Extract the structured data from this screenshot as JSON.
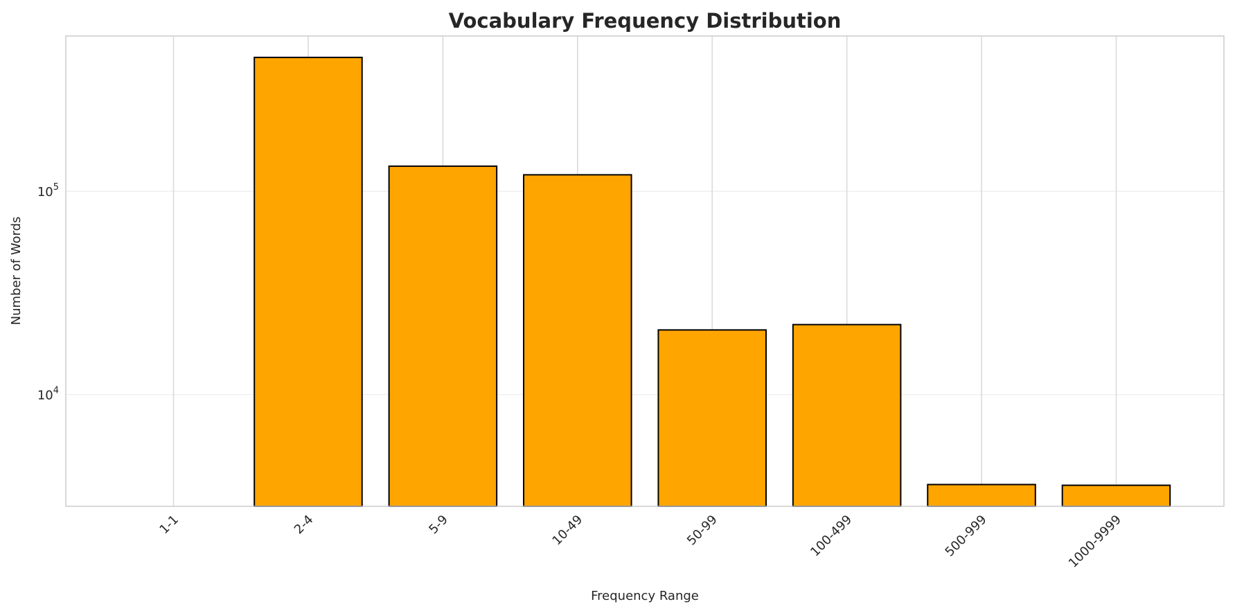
{
  "chart_data": {
    "type": "bar",
    "title": "Vocabulary Frequency Distribution",
    "xlabel": "Frequency Range",
    "ylabel": "Number of Words",
    "yscale": "log",
    "ylim": [
      2820,
      581000
    ],
    "yticks": [
      {
        "value": 10000,
        "base": "10",
        "exp": "4"
      },
      {
        "value": 100000,
        "base": "10",
        "exp": "5"
      }
    ],
    "categories": [
      "1-1",
      "2-4",
      "5-9",
      "10-49",
      "50-99",
      "100-499",
      "500-999",
      "1000-9999"
    ],
    "values": [
      0,
      456000,
      133000,
      120600,
      20800,
      22100,
      3610,
      3580
    ],
    "grid": true,
    "colors": {
      "bar": "#FFA500",
      "edge": "#000000",
      "grid": "#d9d9d9"
    }
  }
}
